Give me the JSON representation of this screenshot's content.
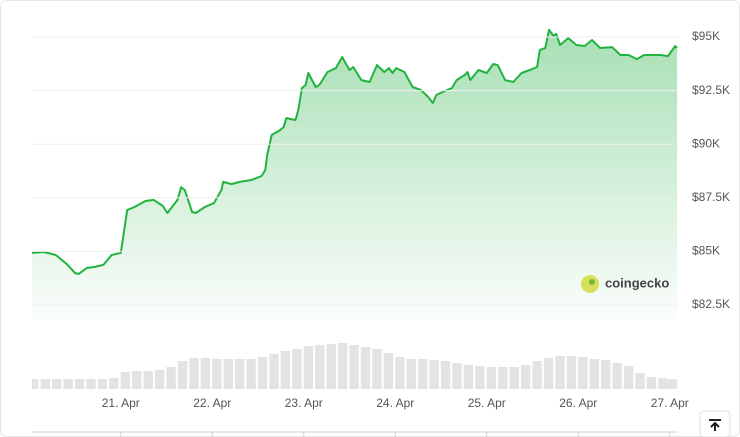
{
  "chart_data": {
    "type": "area",
    "x": [
      20.03,
      20.16,
      20.29,
      20.42,
      20.5,
      20.54,
      20.63,
      20.71,
      20.81,
      20.9,
      21.0,
      21.07,
      21.15,
      21.27,
      21.36,
      21.46,
      21.51,
      21.62,
      21.66,
      21.7,
      21.78,
      21.82,
      21.92,
      22.02,
      22.1,
      22.12,
      22.21,
      22.3,
      22.43,
      22.54,
      22.58,
      22.6,
      22.65,
      22.74,
      22.78,
      22.81,
      22.91,
      22.94,
      22.98,
      23.02,
      23.05,
      23.13,
      23.17,
      23.26,
      23.35,
      23.42,
      23.5,
      23.54,
      23.63,
      23.72,
      23.8,
      23.88,
      23.93,
      23.97,
      24.01,
      24.1,
      24.19,
      24.28,
      24.36,
      24.41,
      24.45,
      24.54,
      24.62,
      24.67,
      24.76,
      24.79,
      24.82,
      24.91,
      25.0,
      25.07,
      25.12,
      25.2,
      25.29,
      25.38,
      25.47,
      25.55,
      25.58,
      25.64,
      25.68,
      25.73,
      25.76,
      25.8,
      25.89,
      25.98,
      26.07,
      26.15,
      26.24,
      26.37,
      26.46,
      26.55,
      26.64,
      26.72,
      26.81,
      26.9,
      26.98,
      27.06,
      27.08
    ],
    "values": [
      84930,
      84970,
      84830,
      84370,
      83990,
      83950,
      84230,
      84270,
      84370,
      84830,
      84930,
      86930,
      87070,
      87350,
      87400,
      87120,
      86790,
      87400,
      88000,
      87860,
      86840,
      86790,
      87070,
      87260,
      87860,
      88240,
      88140,
      88240,
      88330,
      88520,
      88800,
      89500,
      90430,
      90660,
      90800,
      91220,
      91130,
      91600,
      92620,
      92760,
      93320,
      92670,
      92760,
      93370,
      93550,
      94070,
      93460,
      93600,
      92990,
      92900,
      93690,
      93370,
      93550,
      93320,
      93550,
      93370,
      92670,
      92530,
      92200,
      91920,
      92300,
      92480,
      92620,
      92990,
      93230,
      93370,
      92990,
      93460,
      93320,
      93740,
      93690,
      92990,
      92900,
      93320,
      93460,
      93600,
      94390,
      94490,
      95330,
      95050,
      95140,
      94630,
      94950,
      94630,
      94580,
      94860,
      94490,
      94530,
      94160,
      94160,
      93970,
      94160,
      94160,
      94160,
      94110,
      94580,
      94490
    ],
    "color": "#22b33f",
    "xlim": [
      20.03,
      27.09
    ],
    "xticks": [
      {
        "value": 21,
        "label": "21. Apr"
      },
      {
        "value": 22,
        "label": "22. Apr"
      },
      {
        "value": 23,
        "label": "23. Apr"
      },
      {
        "value": 24,
        "label": "24. Apr"
      },
      {
        "value": 25,
        "label": "25. Apr"
      },
      {
        "value": 26,
        "label": "26. Apr"
      },
      {
        "value": 27,
        "label": "27. Apr"
      }
    ],
    "ylim": [
      81800,
      95500
    ],
    "yticks": [
      {
        "value": 82500,
        "label": "$82.5K"
      },
      {
        "value": 85000,
        "label": "$85K"
      },
      {
        "value": 87500,
        "label": "$87.5K"
      },
      {
        "value": 90000,
        "label": "$90K"
      },
      {
        "value": 92500,
        "label": "$92.5K"
      },
      {
        "value": 95000,
        "label": "$95K"
      }
    ],
    "grid": true,
    "volume": {
      "color": "#e3e3e3",
      "x": [
        20.05,
        20.175,
        20.3,
        20.425,
        20.55,
        20.675,
        20.8,
        20.925,
        21.05,
        21.175,
        21.3,
        21.425,
        21.55,
        21.675,
        21.8,
        21.925,
        22.05,
        22.175,
        22.3,
        22.425,
        22.55,
        22.675,
        22.8,
        22.925,
        23.05,
        23.175,
        23.3,
        23.425,
        23.55,
        23.675,
        23.8,
        23.925,
        24.05,
        24.175,
        24.3,
        24.425,
        24.55,
        24.675,
        24.8,
        24.925,
        25.05,
        25.175,
        25.3,
        25.425,
        25.55,
        25.675,
        25.8,
        25.925,
        26.05,
        26.175,
        26.3,
        26.425,
        26.55,
        26.675,
        26.8,
        26.925,
        27.03
      ],
      "values": [
        10,
        10,
        10,
        10,
        10,
        10,
        10,
        11,
        17,
        18,
        18,
        19,
        22,
        28,
        31,
        31,
        30,
        30,
        30,
        30,
        32,
        35,
        38,
        40,
        43,
        44,
        45,
        46,
        44,
        42,
        40,
        36,
        32,
        30,
        30,
        29,
        28,
        26,
        24,
        23,
        22,
        22,
        22,
        24,
        28,
        31,
        33,
        33,
        32,
        30,
        29,
        26,
        23,
        16,
        12,
        11,
        10
      ],
      "y2lim": [
        0,
        60
      ]
    },
    "watermark": "coingecko"
  }
}
